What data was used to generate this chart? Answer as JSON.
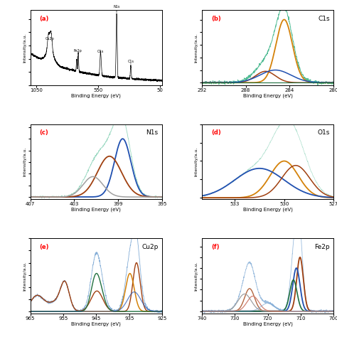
{
  "panel_labels": [
    "(a)",
    "(b)",
    "(c)",
    "(d)",
    "(e)",
    "(f)"
  ],
  "panel_titles": [
    "",
    "C1s",
    "N1s",
    "O1s",
    "Cu2p",
    "Fe2p"
  ],
  "ylabel": "Intensity/a.u.",
  "xlabel": "Binding Energy (eV)",
  "colors": {
    "orange": "#D4820A",
    "blue": "#2050B0",
    "brown": "#A04010",
    "green": "#207040",
    "gray": "#A0A0A0",
    "pink": "#D08070",
    "lightblue": "#70A0D0",
    "black": "#000000",
    "teal": "#20A060",
    "data_line": "#30B080"
  }
}
